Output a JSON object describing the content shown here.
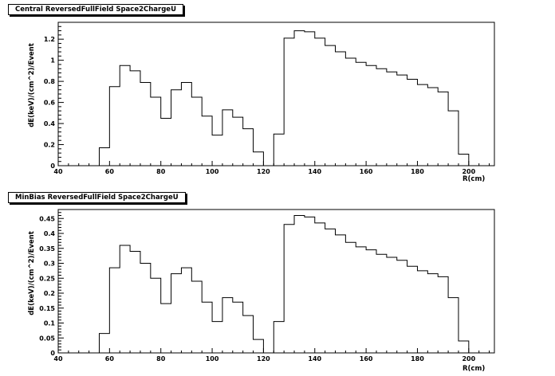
{
  "chart_data": [
    {
      "type": "bar",
      "title": "Central ReversedFullField Space2ChargeU",
      "xlabel": "R(cm)",
      "ylabel": "dE(keV)/(cm^2)/Event",
      "xlim": [
        40,
        210
      ],
      "ylim": [
        0,
        1.36
      ],
      "xticks": [
        "40",
        "60",
        "80",
        "100",
        "120",
        "140",
        "160",
        "180",
        "200"
      ],
      "yticks": [
        "0",
        "0.2",
        "0.4",
        "0.6",
        "0.8",
        "1",
        "1.2"
      ],
      "bin_width": 4,
      "bin_start": 56,
      "values": [
        0.17,
        0.75,
        0.95,
        0.9,
        0.79,
        0.65,
        0.45,
        0.72,
        0.79,
        0.65,
        0.47,
        0.29,
        0.53,
        0.46,
        0.35,
        0.13,
        0.0,
        0.3,
        1.21,
        1.28,
        1.27,
        1.21,
        1.14,
        1.08,
        1.02,
        0.98,
        0.95,
        0.92,
        0.89,
        0.86,
        0.82,
        0.77,
        0.74,
        0.7,
        0.52,
        0.11
      ]
    },
    {
      "type": "bar",
      "title": "MinBias ReversedFullField Space2ChargeU",
      "xlabel": "R(cm)",
      "ylabel": "dE(keV)/(cm^2)/Event",
      "xlim": [
        40,
        210
      ],
      "ylim": [
        0,
        0.48
      ],
      "xticks": [
        "40",
        "60",
        "80",
        "100",
        "120",
        "140",
        "160",
        "180",
        "200"
      ],
      "yticks": [
        "0",
        "0.05",
        "0.1",
        "0.15",
        "0.2",
        "0.25",
        "0.3",
        "0.35",
        "0.4",
        "0.45"
      ],
      "bin_width": 4,
      "bin_start": 56,
      "values": [
        0.065,
        0.285,
        0.36,
        0.34,
        0.3,
        0.25,
        0.165,
        0.265,
        0.285,
        0.24,
        0.17,
        0.105,
        0.185,
        0.17,
        0.125,
        0.045,
        0.0,
        0.105,
        0.43,
        0.46,
        0.455,
        0.435,
        0.415,
        0.395,
        0.37,
        0.355,
        0.345,
        0.33,
        0.32,
        0.31,
        0.29,
        0.275,
        0.265,
        0.255,
        0.185,
        0.04
      ]
    }
  ]
}
